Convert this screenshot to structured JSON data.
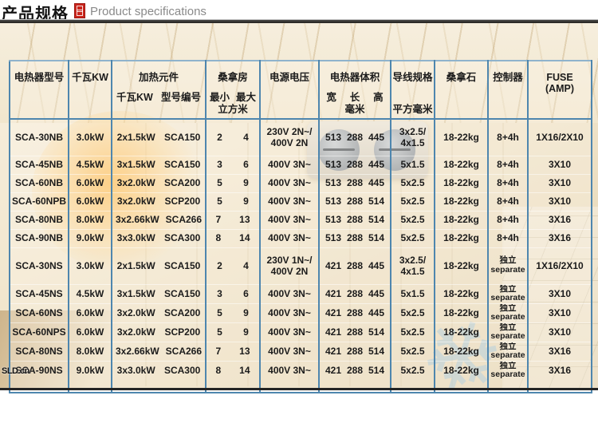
{
  "page_header": {
    "title_zh": "产品规格",
    "title_en": "Product specifications"
  },
  "watermark": "SLD.cn",
  "colors": {
    "table_border": "#4e86ae",
    "seal_red": "#c9251c",
    "title_gray": "#8a8a8a"
  },
  "table": {
    "headers": {
      "model": "电热器型号",
      "kw": "千瓦KW",
      "heating_element": "加热元件",
      "heating_element_kw": "千瓦KW",
      "heating_element_model": "型号编号",
      "sauna_room": "桑拿房",
      "room_min": "最小",
      "room_max": "最大",
      "room_unit": "立方米",
      "voltage": "电源电压",
      "heater_volume": "电热器体积",
      "vol_w": "宽",
      "vol_l": "长",
      "vol_h": "高",
      "vol_unit": "毫米",
      "wire_spec": "导线规格",
      "wire_unit": "平方毫米",
      "stones": "桑拿石",
      "controller": "控制器",
      "fuse_line1": "FUSE",
      "fuse_line2": "(AMP)"
    },
    "rows": [
      {
        "model": "SCA-30NB",
        "kw": "3.0kW",
        "elem_kw": "2x1.5kW",
        "elem_model": "SCA150",
        "room_min": "2",
        "room_max": "4",
        "voltage": [
          "230V 2N~/",
          "400V 2N"
        ],
        "vol": [
          "513",
          "288",
          "445"
        ],
        "wire": [
          "3x2.5/",
          "4x1.5"
        ],
        "stones": "18-22kg",
        "controller": [
          "8+4h"
        ],
        "fuse": "1X16/2X10"
      },
      {
        "model": "SCA-45NB",
        "kw": "4.5kW",
        "elem_kw": "3x1.5kW",
        "elem_model": "SCA150",
        "room_min": "3",
        "room_max": "6",
        "voltage": [
          "400V 3N~"
        ],
        "vol": [
          "513",
          "288",
          "445"
        ],
        "wire": [
          "5x1.5"
        ],
        "stones": "18-22kg",
        "controller": [
          "8+4h"
        ],
        "fuse": "3X10"
      },
      {
        "model": "SCA-60NB",
        "kw": "6.0kW",
        "elem_kw": "3x2.0kW",
        "elem_model": "SCA200",
        "room_min": "5",
        "room_max": "9",
        "voltage": [
          "400V 3N~"
        ],
        "vol": [
          "513",
          "288",
          "445"
        ],
        "wire": [
          "5x2.5"
        ],
        "stones": "18-22kg",
        "controller": [
          "8+4h"
        ],
        "fuse": "3X10"
      },
      {
        "model": "SCA-60NPB",
        "kw": "6.0kW",
        "elem_kw": "3x2.0kW",
        "elem_model": "SCP200",
        "room_min": "5",
        "room_max": "9",
        "voltage": [
          "400V 3N~"
        ],
        "vol": [
          "513",
          "288",
          "514"
        ],
        "wire": [
          "5x2.5"
        ],
        "stones": "18-22kg",
        "controller": [
          "8+4h"
        ],
        "fuse": "3X10"
      },
      {
        "model": "SCA-80NB",
        "kw": "8.0kW",
        "elem_kw": "3x2.66kW",
        "elem_model": "SCA266",
        "room_min": "7",
        "room_max": "13",
        "voltage": [
          "400V 3N~"
        ],
        "vol": [
          "513",
          "288",
          "514"
        ],
        "wire": [
          "5x2.5"
        ],
        "stones": "18-22kg",
        "controller": [
          "8+4h"
        ],
        "fuse": "3X16"
      },
      {
        "model": "SCA-90NB",
        "kw": "9.0kW",
        "elem_kw": "3x3.0kW",
        "elem_model": "SCA300",
        "room_min": "8",
        "room_max": "14",
        "voltage": [
          "400V 3N~"
        ],
        "vol": [
          "513",
          "288",
          "514"
        ],
        "wire": [
          "5x2.5"
        ],
        "stones": "18-22kg",
        "controller": [
          "8+4h"
        ],
        "fuse": "3X16"
      },
      {
        "model": "SCA-30NS",
        "kw": "3.0kW",
        "elem_kw": "2x1.5kW",
        "elem_model": "SCA150",
        "room_min": "2",
        "room_max": "4",
        "voltage": [
          "230V 1N~/",
          "400V 2N"
        ],
        "vol": [
          "421",
          "288",
          "445"
        ],
        "wire": [
          "3x2.5/",
          "4x1.5"
        ],
        "stones": "18-22kg",
        "controller": [
          "独立",
          "separate"
        ],
        "fuse": "1X16/2X10"
      },
      {
        "model": "SCA-45NS",
        "kw": "4.5kW",
        "elem_kw": "3x1.5kW",
        "elem_model": "SCA150",
        "room_min": "3",
        "room_max": "6",
        "voltage": [
          "400V 3N~"
        ],
        "vol": [
          "421",
          "288",
          "445"
        ],
        "wire": [
          "5x1.5"
        ],
        "stones": "18-22kg",
        "controller": [
          "独立",
          "separate"
        ],
        "fuse": "3X10"
      },
      {
        "model": "SCA-60NS",
        "kw": "6.0kW",
        "elem_kw": "3x2.0kW",
        "elem_model": "SCA200",
        "room_min": "5",
        "room_max": "9",
        "voltage": [
          "400V 3N~"
        ],
        "vol": [
          "421",
          "288",
          "445"
        ],
        "wire": [
          "5x2.5"
        ],
        "stones": "18-22kg",
        "controller": [
          "独立",
          "separate"
        ],
        "fuse": "3X10"
      },
      {
        "model": "SCA-60NPS",
        "kw": "6.0kW",
        "elem_kw": "3x2.0kW",
        "elem_model": "SCP200",
        "room_min": "5",
        "room_max": "9",
        "voltage": [
          "400V 3N~"
        ],
        "vol": [
          "421",
          "288",
          "514"
        ],
        "wire": [
          "5x2.5"
        ],
        "stones": "18-22kg",
        "controller": [
          "独立",
          "separate"
        ],
        "fuse": "3X10"
      },
      {
        "model": "SCA-80NS",
        "kw": "8.0kW",
        "elem_kw": "3x2.66kW",
        "elem_model": "SCA266",
        "room_min": "7",
        "room_max": "13",
        "voltage": [
          "400V 3N~"
        ],
        "vol": [
          "421",
          "288",
          "514"
        ],
        "wire": [
          "5x2.5"
        ],
        "stones": "18-22kg",
        "controller": [
          "独立",
          "separate"
        ],
        "fuse": "3X16"
      },
      {
        "model": "SCA-90NS",
        "kw": "9.0kW",
        "elem_kw": "3x3.0kW",
        "elem_model": "SCA300",
        "room_min": "8",
        "room_max": "14",
        "voltage": [
          "400V 3N~"
        ],
        "vol": [
          "421",
          "288",
          "514"
        ],
        "wire": [
          "5x2.5"
        ],
        "stones": "18-22kg",
        "controller": [
          "独立",
          "separate"
        ],
        "fuse": "3X16"
      }
    ]
  }
}
